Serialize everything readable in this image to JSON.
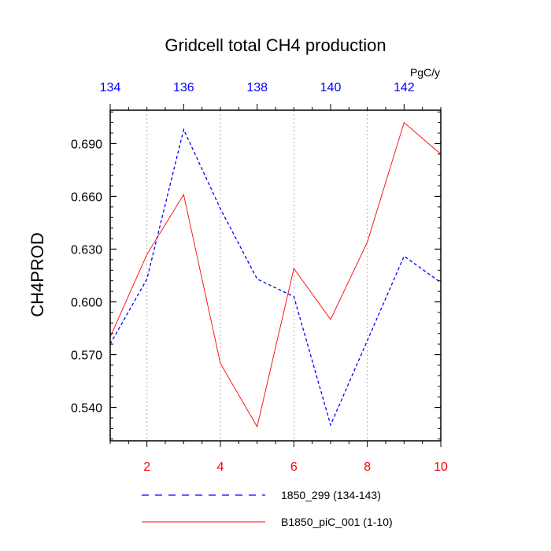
{
  "chart_data": {
    "type": "line",
    "title": "Gridcell total CH4 production",
    "units": "PgC/y",
    "ylabel": "CH4PROD",
    "ylim": [
      0.521,
      0.709
    ],
    "yticks": [
      "0.540",
      "0.570",
      "0.600",
      "0.630",
      "0.660",
      "0.690"
    ],
    "bottom_axis": {
      "range": [
        1,
        10
      ],
      "ticks": [
        "2",
        "4",
        "6",
        "8",
        "10"
      ],
      "color": "#ff0000"
    },
    "top_axis": {
      "range": [
        134,
        143
      ],
      "ticks": [
        "134",
        "136",
        "138",
        "140",
        "142"
      ],
      "color": "#0000ff"
    },
    "grid": "vertical dotted at bottom-axis major ticks",
    "series": [
      {
        "name": "1850_299 (134-143)",
        "axis": "top",
        "color": "#0000ff",
        "style": "dashed",
        "x": [
          134,
          135,
          136,
          137,
          138,
          139,
          140,
          141,
          142,
          143
        ],
        "y": [
          0.576,
          0.613,
          0.698,
          0.653,
          0.613,
          0.603,
          0.53,
          0.578,
          0.626,
          0.611
        ]
      },
      {
        "name": "B1850_piC_001 (1-10)",
        "axis": "bottom",
        "color": "#ff0000",
        "style": "solid",
        "x": [
          1,
          2,
          3,
          4,
          5,
          6,
          7,
          8,
          9,
          10
        ],
        "y": [
          0.58,
          0.627,
          0.661,
          0.565,
          0.529,
          0.619,
          0.59,
          0.634,
          0.702,
          0.684
        ]
      }
    ],
    "legend": "bottom"
  }
}
